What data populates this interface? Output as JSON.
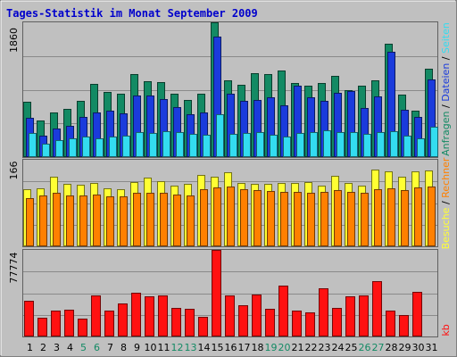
{
  "title": "Tages-Statistik im Monat September 2009",
  "colors": {
    "background": "#c0c0c0",
    "title": "#0000cc",
    "anfragen": "#138a64",
    "dateien": "#1a3bdc",
    "seiten": "#33dcf0",
    "besuche": "#ffff33",
    "rechner": "#ff8000",
    "kb": "#ff1111",
    "weekend": "#138a64",
    "day_label": "#000000"
  },
  "chart_data": [
    {
      "type": "bar",
      "ymax_label": "1860",
      "ymax": 1860,
      "series": [
        {
          "name": "Anfragen",
          "values": [
            760,
            500,
            610,
            670,
            770,
            1010,
            900,
            880,
            1150,
            1050,
            1040,
            870,
            790,
            880,
            1860,
            1060,
            1000,
            1160,
            1150,
            1200,
            1020,
            980,
            1020,
            1120,
            920,
            980,
            1060,
            1570,
            860,
            640,
            1220
          ]
        },
        {
          "name": "Dateien",
          "values": [
            540,
            300,
            390,
            430,
            550,
            610,
            640,
            600,
            850,
            850,
            800,
            690,
            590,
            610,
            1660,
            880,
            780,
            790,
            830,
            720,
            990,
            820,
            770,
            890,
            910,
            680,
            840,
            1450,
            650,
            550,
            1070
          ]
        },
        {
          "name": "Seiten",
          "values": [
            330,
            180,
            240,
            260,
            280,
            260,
            280,
            290,
            340,
            330,
            360,
            340,
            320,
            310,
            590,
            320,
            330,
            340,
            310,
            280,
            330,
            350,
            370,
            340,
            350,
            320,
            340,
            360,
            300,
            260,
            420
          ]
        }
      ]
    },
    {
      "type": "bar",
      "ymax_label": "166",
      "ymax": 166,
      "series": [
        {
          "name": "Besuche",
          "values": [
            110,
            112,
            133,
            120,
            118,
            122,
            112,
            109,
            123,
            132,
            125,
            117,
            120,
            137,
            134,
            142,
            121,
            120,
            119,
            122,
            122,
            123,
            116,
            135,
            121,
            116,
            148,
            144,
            134,
            144,
            145
          ]
        },
        {
          "name": "Rechner",
          "values": [
            92,
            98,
            103,
            98,
            97,
            99,
            95,
            95,
            103,
            103,
            103,
            100,
            98,
            109,
            113,
            114,
            109,
            108,
            106,
            105,
            104,
            103,
            104,
            108,
            105,
            102,
            110,
            112,
            108,
            113,
            115
          ]
        }
      ]
    },
    {
      "type": "bar",
      "ymax_label": "77774",
      "ymax": 77774,
      "series": [
        {
          "name": "kb",
          "values": [
            32000,
            17000,
            23000,
            24000,
            16000,
            37000,
            23000,
            30000,
            39000,
            36000,
            37000,
            26000,
            25000,
            18000,
            77774,
            37000,
            28000,
            38000,
            25000,
            46000,
            23000,
            22000,
            43000,
            26000,
            36000,
            37000,
            50000,
            23000,
            19000,
            40000,
            null
          ]
        }
      ]
    }
  ],
  "days": [
    "1",
    "2",
    "3",
    "4",
    "5",
    "6",
    "7",
    "8",
    "9",
    "10",
    "11",
    "12",
    "13",
    "14",
    "15",
    "16",
    "17",
    "18",
    "19",
    "20",
    "21",
    "22",
    "23",
    "24",
    "25",
    "26",
    "27",
    "28",
    "29",
    "30",
    "31"
  ],
  "weekend_days": [
    5,
    6,
    12,
    13,
    19,
    20,
    26,
    27
  ],
  "legend_top": {
    "parts": [
      {
        "text": "Anfragen",
        "color": "#138a64"
      },
      {
        "text": " / ",
        "color": "#000000"
      },
      {
        "text": "Dateien",
        "color": "#1a3bdc"
      },
      {
        "text": " / ",
        "color": "#000000"
      },
      {
        "text": "Seiten",
        "color": "#33dcf0"
      }
    ]
  },
  "legend_mid": {
    "parts": [
      {
        "text": "Besuche",
        "color": "#ffff33"
      },
      {
        "text": " / ",
        "color": "#000000"
      },
      {
        "text": "Rechner",
        "color": "#ff8000"
      }
    ]
  },
  "legend_bot": {
    "parts": [
      {
        "text": "kb",
        "color": "#ff1111"
      }
    ]
  }
}
